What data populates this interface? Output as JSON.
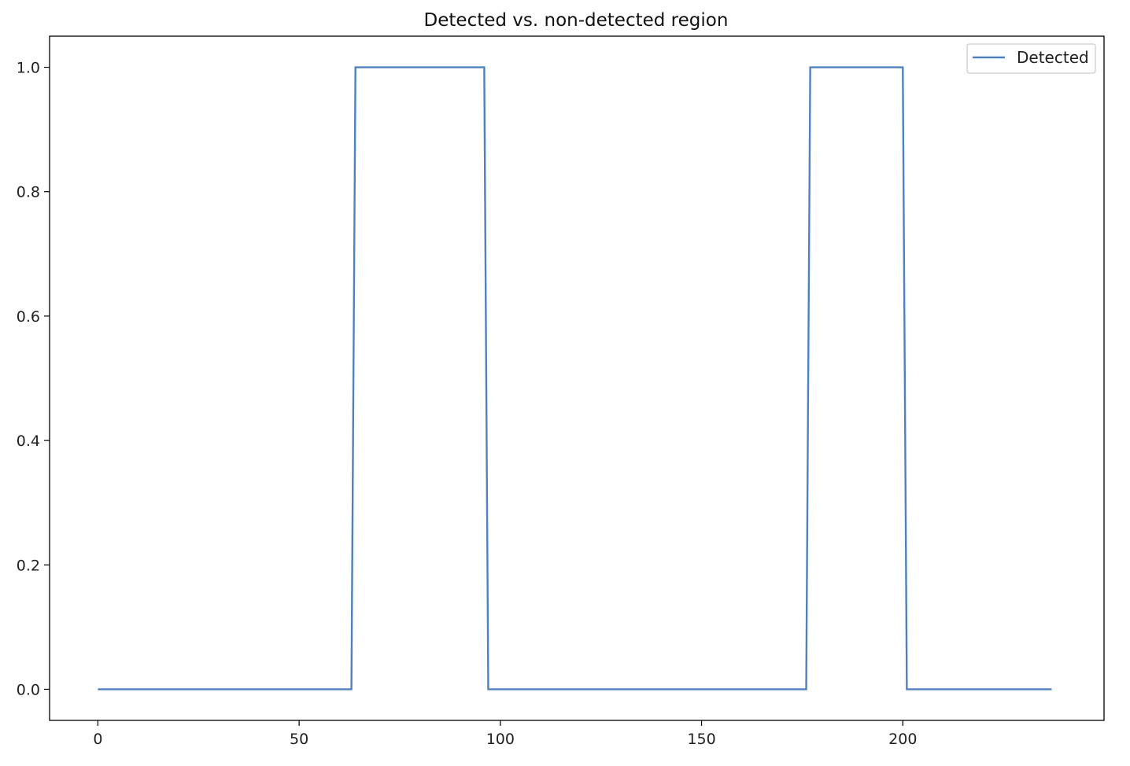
{
  "chart_data": {
    "type": "line",
    "title": "Detected vs. non-detected region",
    "xlabel": "",
    "ylabel": "",
    "xlim": [
      -12,
      250
    ],
    "ylim": [
      -0.05,
      1.05
    ],
    "x_ticks": [
      0,
      50,
      100,
      150,
      200
    ],
    "y_ticks": [
      0.0,
      0.2,
      0.4,
      0.6,
      0.8,
      1.0
    ],
    "x_tick_labels": [
      "0",
      "50",
      "100",
      "150",
      "200"
    ],
    "y_tick_labels": [
      "0.0",
      "0.2",
      "0.4",
      "0.6",
      "0.8",
      "1.0"
    ],
    "grid": false,
    "legend_position": "top-right",
    "series": [
      {
        "name": "Detected",
        "color": "#4f81bd",
        "x": [
          0,
          63,
          64,
          96,
          97,
          176,
          177,
          200,
          201,
          237
        ],
        "y": [
          0,
          0,
          1,
          1,
          0,
          0,
          1,
          1,
          0,
          0
        ]
      }
    ]
  }
}
